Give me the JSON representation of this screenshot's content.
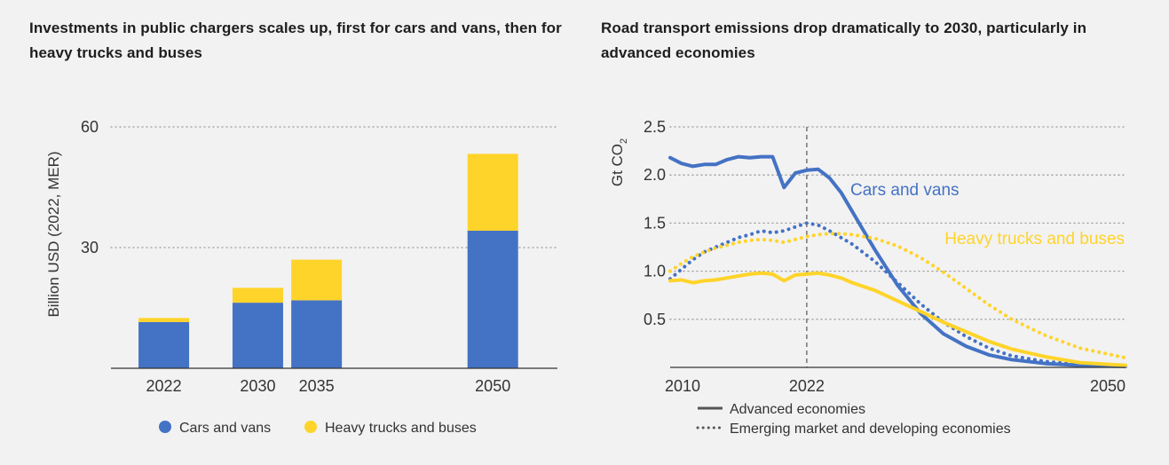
{
  "left_title": "Investments in public chargers scales up, first for cars and vans, then for heavy trucks and buses",
  "right_title": "Road transport emissions drop dramatically to 2030, particularly in advanced economies",
  "colors": {
    "blue": "#4472c4",
    "yellow": "#ffd42a",
    "grid": "#9a9a9a",
    "axis": "#333333"
  },
  "chart_data": [
    {
      "type": "bar",
      "stacked": true,
      "ylabel": "Billion USD (2022, MER)",
      "ylim": [
        0,
        60
      ],
      "yticks": [
        "30",
        "60"
      ],
      "grid": true,
      "legend_position": "bottom",
      "x": [
        2022,
        2030,
        2035,
        2050
      ],
      "xtick_labels": [
        "2022",
        "2030",
        "2035",
        "2050"
      ],
      "xlim": [
        2017.5,
        2055.5
      ],
      "series": [
        {
          "name": "Cars and vans",
          "color": "#4472c4",
          "values": [
            11.5,
            16.3,
            16.9,
            34.2
          ]
        },
        {
          "name": "Heavy trucks and buses",
          "color": "#ffd42a",
          "values": [
            1.0,
            3.7,
            10.1,
            19.1
          ]
        }
      ]
    },
    {
      "type": "line",
      "ylabel": "Gt CO",
      "ylabel_subscript": "2",
      "ylim": [
        0,
        2.5
      ],
      "yticks": [
        "0.5",
        "1.0",
        "1.5",
        "2.0",
        "2.5"
      ],
      "xlim": [
        2010,
        2050
      ],
      "xtick_labels": [
        "2010",
        "2022",
        "2050"
      ],
      "xticks": [
        2010,
        2022,
        2050
      ],
      "marker_year": 2022,
      "grid": true,
      "labels": {
        "cars": "Cars and vans",
        "trucks": "Heavy trucks and buses"
      },
      "legend": {
        "solid": "Advanced economies",
        "dotted": "Emerging market and developing economies"
      },
      "series": [
        {
          "group": "Cars and vans",
          "style": "solid",
          "color": "#4472c4",
          "points": [
            [
              2010,
              2.18
            ],
            [
              2011,
              2.12
            ],
            [
              2012,
              2.09
            ],
            [
              2013,
              2.11
            ],
            [
              2014,
              2.11
            ],
            [
              2015,
              2.16
            ],
            [
              2016,
              2.19
            ],
            [
              2017,
              2.18
            ],
            [
              2018,
              2.19
            ],
            [
              2019,
              2.19
            ],
            [
              2020,
              1.87
            ],
            [
              2021,
              2.02
            ],
            [
              2022,
              2.05
            ],
            [
              2023,
              2.06
            ],
            [
              2024,
              1.97
            ],
            [
              2025,
              1.82
            ],
            [
              2026,
              1.62
            ],
            [
              2027,
              1.42
            ],
            [
              2028,
              1.22
            ],
            [
              2030,
              0.85
            ],
            [
              2032,
              0.56
            ],
            [
              2034,
              0.35
            ],
            [
              2036,
              0.22
            ],
            [
              2038,
              0.13
            ],
            [
              2040,
              0.08
            ],
            [
              2043,
              0.04
            ],
            [
              2046,
              0.02
            ],
            [
              2050,
              0.01
            ]
          ]
        },
        {
          "group": "Cars and vans",
          "style": "dotted",
          "color": "#4472c4",
          "points": [
            [
              2010,
              0.92
            ],
            [
              2011,
              1.02
            ],
            [
              2012,
              1.12
            ],
            [
              2013,
              1.2
            ],
            [
              2014,
              1.25
            ],
            [
              2015,
              1.3
            ],
            [
              2016,
              1.35
            ],
            [
              2017,
              1.38
            ],
            [
              2018,
              1.42
            ],
            [
              2019,
              1.4
            ],
            [
              2020,
              1.42
            ],
            [
              2021,
              1.46
            ],
            [
              2022,
              1.5
            ],
            [
              2023,
              1.48
            ],
            [
              2024,
              1.42
            ],
            [
              2026,
              1.28
            ],
            [
              2028,
              1.1
            ],
            [
              2030,
              0.88
            ],
            [
              2032,
              0.66
            ],
            [
              2034,
              0.47
            ],
            [
              2036,
              0.32
            ],
            [
              2038,
              0.2
            ],
            [
              2040,
              0.12
            ],
            [
              2043,
              0.06
            ],
            [
              2046,
              0.03
            ],
            [
              2050,
              0.02
            ]
          ]
        },
        {
          "group": "Heavy trucks and buses",
          "style": "solid",
          "color": "#ffd42a",
          "points": [
            [
              2010,
              0.9
            ],
            [
              2011,
              0.91
            ],
            [
              2012,
              0.88
            ],
            [
              2013,
              0.9
            ],
            [
              2014,
              0.91
            ],
            [
              2015,
              0.93
            ],
            [
              2016,
              0.95
            ],
            [
              2017,
              0.97
            ],
            [
              2018,
              0.98
            ],
            [
              2019,
              0.97
            ],
            [
              2020,
              0.9
            ],
            [
              2021,
              0.96
            ],
            [
              2022,
              0.97
            ],
            [
              2023,
              0.98
            ],
            [
              2024,
              0.96
            ],
            [
              2025,
              0.93
            ],
            [
              2026,
              0.88
            ],
            [
              2028,
              0.8
            ],
            [
              2030,
              0.69
            ],
            [
              2032,
              0.58
            ],
            [
              2034,
              0.47
            ],
            [
              2036,
              0.37
            ],
            [
              2038,
              0.27
            ],
            [
              2040,
              0.19
            ],
            [
              2043,
              0.11
            ],
            [
              2046,
              0.05
            ],
            [
              2050,
              0.02
            ]
          ]
        },
        {
          "group": "Heavy trucks and buses",
          "style": "dotted",
          "color": "#ffd42a",
          "points": [
            [
              2010,
              1.0
            ],
            [
              2011,
              1.08
            ],
            [
              2012,
              1.15
            ],
            [
              2013,
              1.2
            ],
            [
              2014,
              1.24
            ],
            [
              2015,
              1.27
            ],
            [
              2016,
              1.3
            ],
            [
              2017,
              1.32
            ],
            [
              2018,
              1.33
            ],
            [
              2019,
              1.32
            ],
            [
              2020,
              1.3
            ],
            [
              2021,
              1.33
            ],
            [
              2022,
              1.36
            ],
            [
              2023,
              1.38
            ],
            [
              2024,
              1.39
            ],
            [
              2025,
              1.39
            ],
            [
              2026,
              1.38
            ],
            [
              2028,
              1.34
            ],
            [
              2030,
              1.26
            ],
            [
              2032,
              1.14
            ],
            [
              2034,
              0.99
            ],
            [
              2036,
              0.82
            ],
            [
              2038,
              0.65
            ],
            [
              2040,
              0.5
            ],
            [
              2043,
              0.33
            ],
            [
              2046,
              0.2
            ],
            [
              2050,
              0.1
            ]
          ]
        }
      ]
    }
  ]
}
